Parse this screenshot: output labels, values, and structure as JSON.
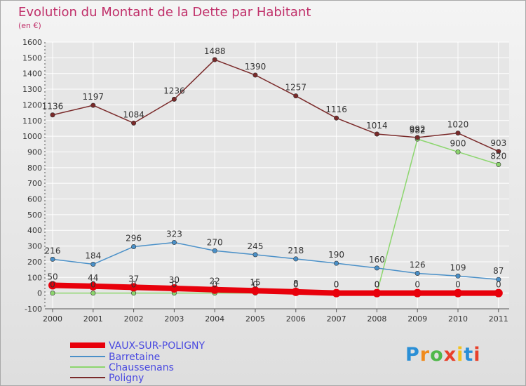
{
  "chart_data": {
    "type": "line",
    "title": "Evolution du Montant de la Dette par Habitant",
    "subtitle": "(en €)",
    "xlabel": "",
    "ylabel": "",
    "categories": [
      "2000",
      "2001",
      "2002",
      "2003",
      "2004",
      "2005",
      "2006",
      "2007",
      "2008",
      "2009",
      "2010",
      "2011"
    ],
    "ylim": [
      -100,
      1600
    ],
    "yticks": [
      -100,
      0,
      100,
      200,
      300,
      400,
      500,
      600,
      700,
      800,
      900,
      1000,
      1100,
      1200,
      1300,
      1400,
      1500,
      1600
    ],
    "grid": true,
    "legend_position": "bottom-left",
    "series": [
      {
        "name": "VAUX-SUR-POLIGNY",
        "color": "#e8000b",
        "values": [
          50,
          44,
          37,
          30,
          22,
          15,
          8,
          0,
          0,
          0,
          0,
          0
        ],
        "labels": [
          "50",
          "44",
          "37",
          "30",
          "22",
          "15",
          "8",
          "0",
          "0",
          "0",
          "0",
          "0"
        ]
      },
      {
        "name": "Barretaine",
        "color": "#4a90c8",
        "values": [
          216,
          184,
          296,
          323,
          270,
          245,
          218,
          190,
          160,
          126,
          109,
          87
        ],
        "labels": [
          "216",
          "184",
          "296",
          "323",
          "270",
          "245",
          "218",
          "190",
          "160",
          "126",
          "109",
          "87"
        ]
      },
      {
        "name": "Chaussenans",
        "color": "#8cd66e",
        "values": [
          0,
          0,
          0,
          0,
          0,
          0,
          0,
          0,
          0,
          982,
          900,
          820
        ],
        "labels": [
          "0",
          "0",
          "0",
          "0",
          "0",
          "0",
          "0",
          "0",
          "0",
          "982",
          "900",
          "820"
        ]
      },
      {
        "name": "Poligny",
        "color": "#7a2a2a",
        "values": [
          1136,
          1197,
          1084,
          1236,
          1488,
          1390,
          1257,
          1116,
          1014,
          992,
          1020,
          903
        ],
        "labels": [
          "1136",
          "1197",
          "1084",
          "1236",
          "1488",
          "1390",
          "1257",
          "1116",
          "1014",
          "992",
          "1020",
          "903"
        ]
      }
    ]
  },
  "colors": {
    "title": "#c0306a",
    "legend_text": "#4a4ae0",
    "axis": "#555555",
    "grid": "#ffffff"
  },
  "brand": {
    "p": "P",
    "r": "r",
    "o": "o",
    "x": "x",
    "i1": "i",
    "t": "t",
    "i2": "i"
  }
}
